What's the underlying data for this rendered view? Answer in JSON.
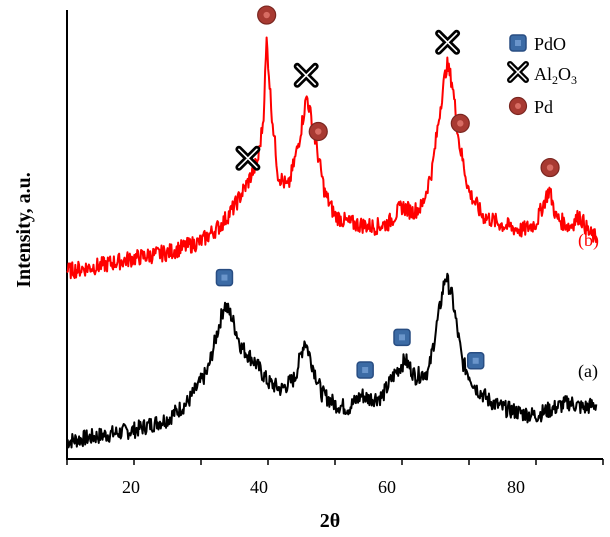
{
  "chart_data": {
    "type": "line",
    "xlabel": "2θ",
    "ylabel": "Intensity, a.u.",
    "xlim": [
      10,
      90
    ],
    "x_ticks": [
      "20",
      "40",
      "60",
      "80"
    ],
    "grid": false,
    "legend_position": "top-right",
    "legend": [
      {
        "id": "pdo",
        "label": "PdO",
        "marker": "square",
        "color": "#3c6ba5"
      },
      {
        "id": "al2o3",
        "label_main": "Al",
        "label_sub1": "2",
        "label_mid": "O",
        "label_sub2": "3",
        "marker": "x-cross",
        "color": "#000000"
      },
      {
        "id": "pd",
        "label": "Pd",
        "marker": "circle",
        "color": "#a83a32"
      }
    ],
    "series": [
      {
        "name": "(a)",
        "color": "#000000",
        "points": [
          [
            10,
            0.8
          ],
          [
            15,
            1.1
          ],
          [
            20,
            1.4
          ],
          [
            25,
            2.0
          ],
          [
            28,
            2.9
          ],
          [
            31,
            4.6
          ],
          [
            32.5,
            6.8
          ],
          [
            33.5,
            8.2
          ],
          [
            34.5,
            7.6
          ],
          [
            36,
            5.9
          ],
          [
            38,
            5.1
          ],
          [
            40,
            4.0
          ],
          [
            42,
            3.6
          ],
          [
            44,
            4.2
          ],
          [
            45.5,
            6.3
          ],
          [
            46.5,
            5.1
          ],
          [
            48,
            3.4
          ],
          [
            50,
            2.8
          ],
          [
            52,
            2.6
          ],
          [
            54,
            3.3
          ],
          [
            55,
            3.1
          ],
          [
            57,
            3.2
          ],
          [
            59,
            4.5
          ],
          [
            60.5,
            5.2
          ],
          [
            62,
            4.3
          ],
          [
            64,
            4.6
          ],
          [
            65.5,
            7.7
          ],
          [
            66.5,
            9.8
          ],
          [
            67.5,
            8.6
          ],
          [
            69,
            5.1
          ],
          [
            71,
            3.7
          ],
          [
            73,
            3.0
          ],
          [
            75,
            2.6
          ],
          [
            78,
            2.3
          ],
          [
            80,
            2.2
          ],
          [
            82,
            2.5
          ],
          [
            85,
            2.9
          ],
          [
            87,
            2.6
          ],
          [
            89,
            2.8
          ]
        ]
      },
      {
        "name": "(b)",
        "color": "#ff0000",
        "points": [
          [
            10,
            10.0
          ],
          [
            15,
            10.3
          ],
          [
            20,
            10.7
          ],
          [
            25,
            11.0
          ],
          [
            30,
            11.6
          ],
          [
            33,
            12.5
          ],
          [
            35,
            13.5
          ],
          [
            37,
            14.8
          ],
          [
            38.5,
            16.0
          ],
          [
            39.3,
            18.2
          ],
          [
            39.8,
            22.5
          ],
          [
            40.5,
            18.8
          ],
          [
            41.5,
            15.2
          ],
          [
            43,
            14.5
          ],
          [
            44.5,
            16.8
          ],
          [
            45.8,
            19.5
          ],
          [
            47,
            17.2
          ],
          [
            48.5,
            14.2
          ],
          [
            50,
            13.0
          ],
          [
            52,
            12.6
          ],
          [
            54,
            12.5
          ],
          [
            56,
            12.4
          ],
          [
            58,
            12.6
          ],
          [
            60,
            13.5
          ],
          [
            61.5,
            13.2
          ],
          [
            63,
            13.5
          ],
          [
            64.5,
            15.5
          ],
          [
            66,
            19.6
          ],
          [
            66.7,
            21.2
          ],
          [
            67.5,
            20.2
          ],
          [
            68.5,
            17.0
          ],
          [
            70,
            14.3
          ],
          [
            72,
            13.0
          ],
          [
            75,
            12.5
          ],
          [
            78,
            12.2
          ],
          [
            80,
            12.6
          ],
          [
            81.5,
            14.0
          ],
          [
            82,
            14.4
          ],
          [
            83,
            12.9
          ],
          [
            85,
            12.4
          ],
          [
            86.5,
            13.0
          ],
          [
            88,
            12.0
          ],
          [
            89,
            11.8
          ]
        ]
      }
    ],
    "curve_labels": {
      "a": "(a)",
      "b": "(b)"
    },
    "annotations": {
      "pdo": [
        33.5,
        54.5,
        60.0,
        71.0
      ],
      "al2o3": [
        37.0,
        45.7,
        66.8
      ],
      "pd": [
        39.8,
        47.5,
        68.7,
        82.1
      ]
    }
  }
}
